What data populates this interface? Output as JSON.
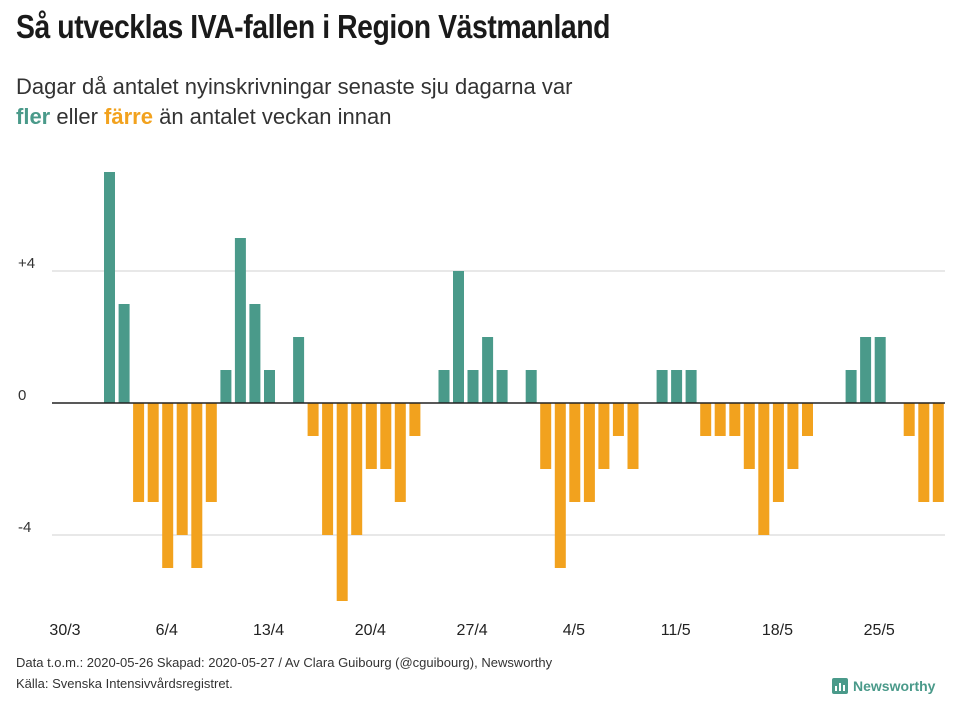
{
  "header": {
    "title": "Så utvecklas IVA-fallen i Region Västmanland",
    "subtitle_line1": "Dagar då antalet nyinskrivningar senaste sju dagarna var",
    "subtitle_fler": "fler",
    "subtitle_eller": " eller ",
    "subtitle_farre": "färre",
    "subtitle_rest": " än antalet veckan innan"
  },
  "footer": {
    "line1": "Data t.o.m.: 2020-05-26 Skapad: 2020-05-27 / Av Clara Guibourg (@cguibourg), Newsworthy",
    "line2": "Källa: Svenska Intensivvårdsregistret."
  },
  "logo": {
    "text": "Newsworthy"
  },
  "colors": {
    "positive": "#4a9a8a",
    "negative": "#f2a21e",
    "grid": "#d9d9d9",
    "axis": "#222222"
  },
  "chart_data": {
    "type": "bar",
    "title": "Så utvecklas IVA-fallen i Region Västmanland",
    "xlabel": "",
    "ylabel": "",
    "ylim": [
      -6,
      7
    ],
    "yticks": [
      {
        "value": 4,
        "label": "+4"
      },
      {
        "value": 0,
        "label": "0"
      },
      {
        "value": -4,
        "label": "-4"
      }
    ],
    "x_tick_labels": [
      "30/3",
      "6/4",
      "13/4",
      "20/4",
      "27/4",
      "4/5",
      "11/5",
      "18/5",
      "25/5"
    ],
    "x_tick_indices": [
      0,
      7,
      14,
      21,
      28,
      35,
      42,
      49,
      56
    ],
    "start_date": "30/3",
    "values": [
      0,
      7,
      3,
      -3,
      -3,
      -5,
      -4,
      -5,
      -3,
      1,
      5,
      3,
      1,
      0,
      2,
      -1,
      -4,
      -6,
      -4,
      -2,
      -2,
      -3,
      -1,
      0,
      1,
      4,
      1,
      2,
      1,
      0,
      1,
      -2,
      -5,
      -3,
      -3,
      -2,
      -1,
      -2,
      0,
      1,
      1,
      1,
      -1,
      -1,
      -1,
      -2,
      -4,
      -3,
      -2,
      -1,
      0,
      0,
      1,
      2,
      2,
      0,
      -1,
      -3,
      -3
    ]
  }
}
